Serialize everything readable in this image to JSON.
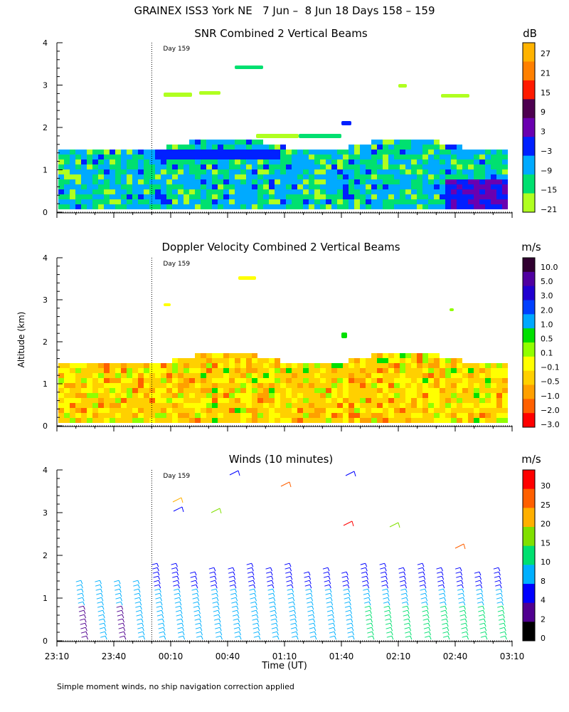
{
  "page": {
    "title": "GRAINEX ISS3 York NE   7 Jun –  8 Jun 18 Days 158 – 159",
    "y_axis_label": "Altitude (km)",
    "x_axis_label": "Time (UT)",
    "footnote": "Simple moment winds, no ship navigation correction applied",
    "day_marker_label": "Day 159"
  },
  "chart_data": [
    {
      "type": "heatmap",
      "title": "SNR Combined 2 Vertical Beams",
      "colorbar_unit": "dB",
      "colorbar_labels": [
        "27",
        "21",
        "15",
        "9",
        "3",
        "−3",
        "−9",
        "−15",
        "−21"
      ],
      "colorbar_colors": [
        "#ffb300",
        "#ff8000",
        "#ff1a00",
        "#4d0050",
        "#6a00b0",
        "#0020ff",
        "#00aaff",
        "#00e070",
        "#b0ff20"
      ],
      "x_ticks": [
        "23:10",
        "23:40",
        "00:10",
        "00:40",
        "01:10",
        "01:40",
        "02:10",
        "02:40",
        "03:10"
      ],
      "y_ticks": [
        0,
        1,
        2,
        3,
        4
      ],
      "ylim": [
        0,
        4
      ],
      "ylabel": "Altitude (km)",
      "day_marker_time": "00:00"
    },
    {
      "type": "heatmap",
      "title": "Doppler Velocity Combined 2 Vertical Beams",
      "colorbar_unit": "m/s",
      "colorbar_labels": [
        "10.0",
        "5.0",
        "3.0",
        "2.0",
        "1.0",
        "0.5",
        "0.1",
        "−0.1",
        "−0.5",
        "−1.0",
        "−2.0",
        "−3.0"
      ],
      "colorbar_colors": [
        "#300030",
        "#5000a0",
        "#2000d0",
        "#0040ff",
        "#00a8ff",
        "#00e000",
        "#90ff00",
        "#ffff00",
        "#ffd000",
        "#ffa000",
        "#ff6000",
        "#ff0000"
      ],
      "x_ticks": [
        "23:10",
        "23:40",
        "00:10",
        "00:40",
        "01:10",
        "01:40",
        "02:10",
        "02:40",
        "03:10"
      ],
      "y_ticks": [
        0,
        1,
        2,
        3,
        4
      ],
      "ylim": [
        0,
        4
      ],
      "ylabel": "Altitude (km)",
      "day_marker_time": "00:00"
    },
    {
      "type": "scatter",
      "title": "Winds (10 minutes)",
      "colorbar_unit": "m/s",
      "colorbar_labels": [
        "30",
        "25",
        "20",
        "15",
        "10",
        "8",
        "4",
        "2",
        "0"
      ],
      "colorbar_colors": [
        "#ff0000",
        "#ff6000",
        "#ffb000",
        "#80e000",
        "#00e070",
        "#00b0ff",
        "#0000ff",
        "#500090",
        "#000000"
      ],
      "x_ticks": [
        "23:10",
        "23:40",
        "00:10",
        "00:40",
        "01:10",
        "01:40",
        "02:10",
        "02:40",
        "03:10"
      ],
      "y_ticks": [
        0,
        1,
        2,
        3,
        4
      ],
      "ylim": [
        0,
        4
      ],
      "xlabel": "Time (UT)",
      "ylabel": "Altitude (km)",
      "day_marker_time": "00:00"
    }
  ]
}
